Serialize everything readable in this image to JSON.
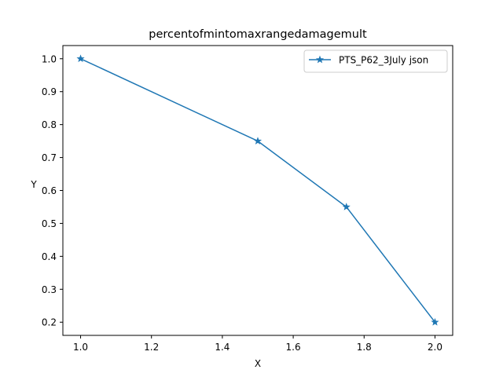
{
  "chart_data": {
    "type": "line",
    "title": "percentofmintomaxrangedamagemult",
    "xlabel": "X",
    "ylabel": "Y",
    "xlim": [
      0.95,
      2.05
    ],
    "ylim": [
      0.16,
      1.04
    ],
    "xticks": [
      1.0,
      1.2,
      1.4,
      1.6,
      1.8,
      2.0
    ],
    "xtick_labels": [
      "1.0",
      "1.2",
      "1.4",
      "1.6",
      "1.8",
      "2.0"
    ],
    "yticks": [
      0.2,
      0.3,
      0.4,
      0.5,
      0.6,
      0.7,
      0.8,
      0.9,
      1.0
    ],
    "ytick_labels": [
      "0.2",
      "0.3",
      "0.4",
      "0.5",
      "0.6",
      "0.7",
      "0.8",
      "0.9",
      "1.0"
    ],
    "grid": false,
    "legend_position": "top-right",
    "series": [
      {
        "name": "PTS_P62_3July json",
        "color": "#1f77b4",
        "marker": "star",
        "x": [
          1.0,
          1.5,
          1.75,
          2.0
        ],
        "y": [
          1.0,
          0.75,
          0.55,
          0.2
        ]
      }
    ]
  }
}
